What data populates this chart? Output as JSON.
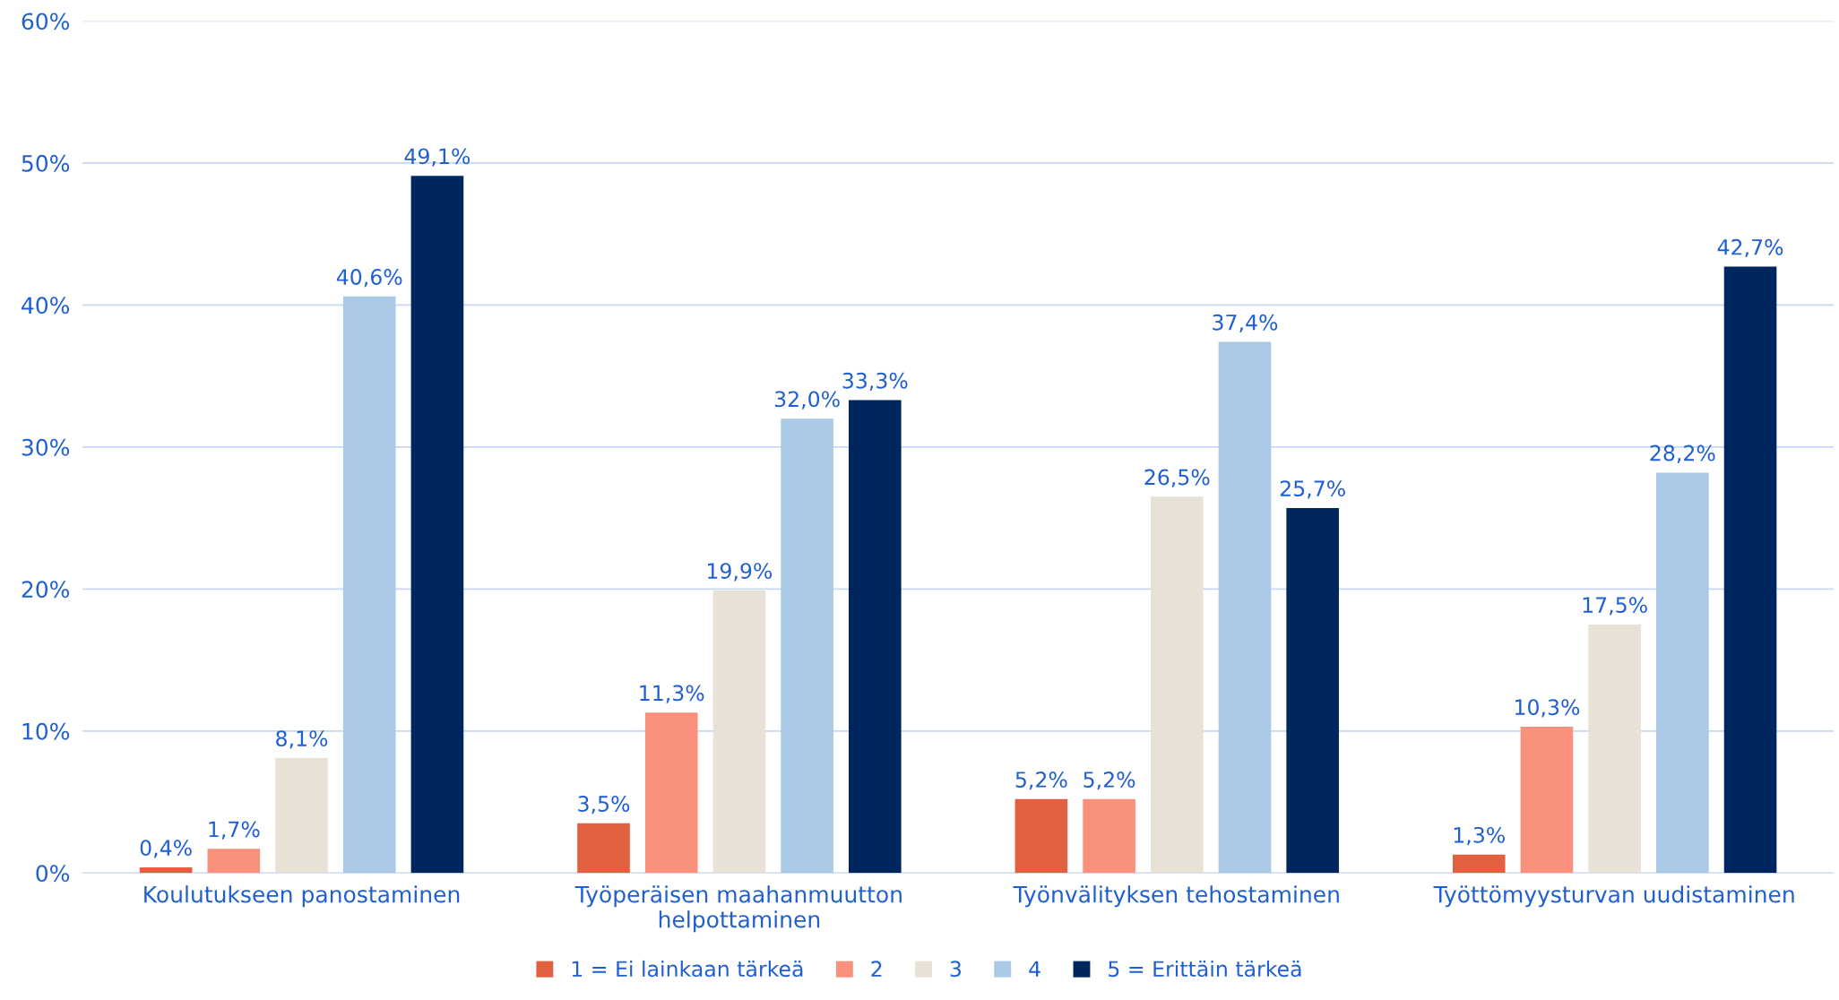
{
  "chart_data": {
    "type": "bar",
    "categories": [
      "Koulutukseen panostaminen",
      "Työperäisen maahanmuutton\nhelpottaminen",
      "Työnvälityksen tehostaminen",
      "Työttömyysturvan uudistaminen"
    ],
    "series": [
      {
        "name": "1 = Ei lainkaan tärkeä",
        "color": "#e06040",
        "values": [
          0.4,
          3.5,
          5.2,
          1.3
        ],
        "value_labels": [
          "0,4%",
          "3,5%",
          "5,2%",
          "1,3%"
        ]
      },
      {
        "name": "2",
        "color": "#f8907c",
        "values": [
          1.7,
          11.3,
          5.2,
          10.3
        ],
        "value_labels": [
          "1,7%",
          "11,3%",
          "5,2%",
          "10,3%"
        ]
      },
      {
        "name": "3",
        "color": "#e8e1d6",
        "values": [
          8.1,
          19.9,
          26.5,
          17.5
        ],
        "value_labels": [
          "8,1%",
          "19,9%",
          "26,5%",
          "17,5%"
        ]
      },
      {
        "name": "4",
        "color": "#a9c9e6",
        "values": [
          40.6,
          32.0,
          37.4,
          28.2
        ],
        "value_labels": [
          "40,6%",
          "32,0%",
          "37,4%",
          "28,2%"
        ]
      },
      {
        "name": "5 = Erittäin tärkeä",
        "color": "#002660",
        "values": [
          49.1,
          33.3,
          25.7,
          42.7
        ],
        "value_labels": [
          "49,1%",
          "33,3%",
          "25,7%",
          "42,7%"
        ]
      }
    ],
    "ylim": [
      0,
      60
    ],
    "yticks": [
      {
        "value": 0,
        "label": "0%"
      },
      {
        "value": 10,
        "label": "10%"
      },
      {
        "value": 20,
        "label": "20%"
      },
      {
        "value": 30,
        "label": "30%"
      },
      {
        "value": 40,
        "label": "40%"
      },
      {
        "value": 50,
        "label": "50%"
      },
      {
        "value": 60,
        "label": "60%"
      }
    ],
    "grid": "y",
    "legend": "bottom"
  }
}
